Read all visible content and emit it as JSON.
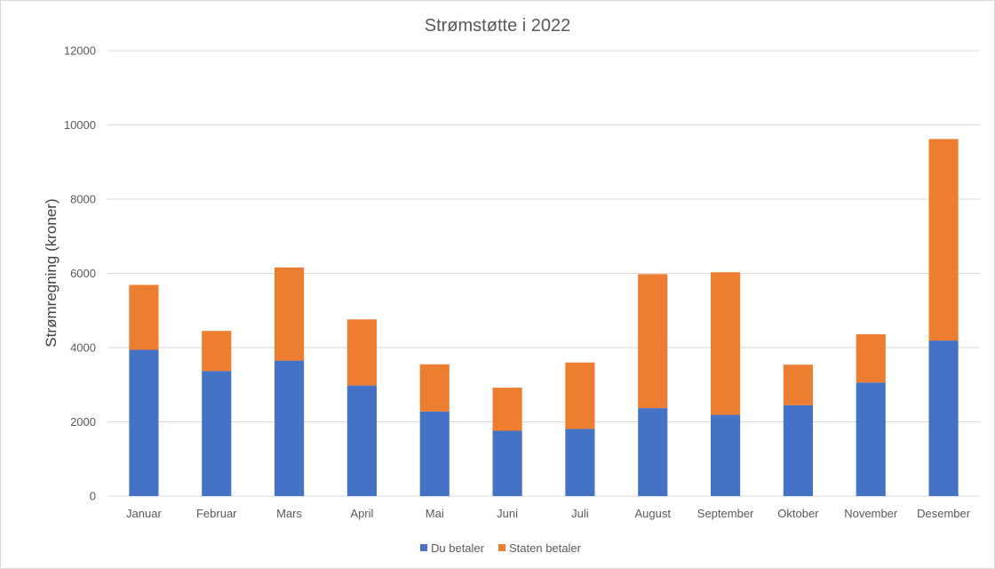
{
  "chart_data": {
    "type": "bar",
    "stacked": true,
    "title": "Strømstøtte i 2022",
    "xlabel": "",
    "ylabel": "Strømregning (kroner)",
    "ylim": [
      0,
      12000
    ],
    "yticks": [
      0,
      2000,
      4000,
      6000,
      8000,
      10000,
      12000
    ],
    "grid": true,
    "legend_position": "bottom",
    "categories": [
      "Januar",
      "Februar",
      "Mars",
      "April",
      "Mai",
      "Juni",
      "Juli",
      "August",
      "September",
      "Oktober",
      "November",
      "Desember"
    ],
    "series": [
      {
        "name": "Du betaler",
        "color": "#4472c4",
        "values": [
          3940,
          3370,
          3650,
          2980,
          2280,
          1760,
          1810,
          2370,
          2190,
          2450,
          3060,
          4190
        ]
      },
      {
        "name": "Staten betaler",
        "color": "#ed7d31",
        "values": [
          1750,
          1080,
          2510,
          1780,
          1270,
          1160,
          1790,
          3610,
          3840,
          1090,
          1300,
          5430
        ]
      }
    ]
  }
}
